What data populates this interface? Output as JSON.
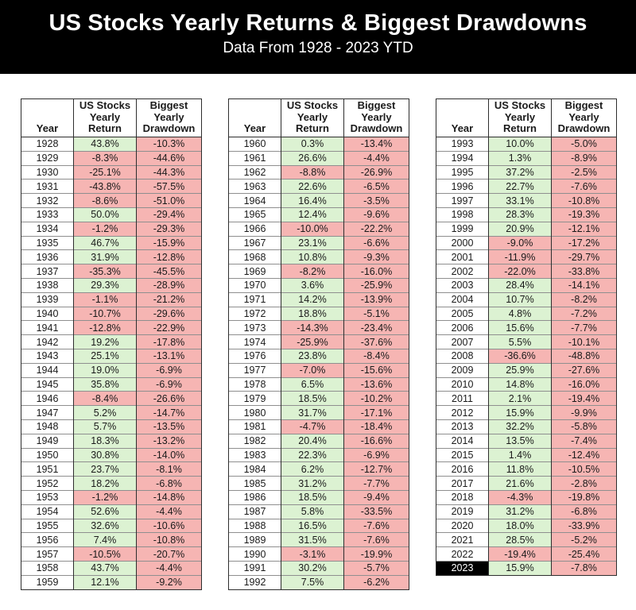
{
  "banner": {
    "title": "US Stocks Yearly Returns & Biggest Drawdowns",
    "subtitle": "Data From 1928 - 2023 YTD"
  },
  "columns_display": [
    "Year",
    "US Stocks\nYearly\nReturn",
    "Biggest\nYearly\nDrawdown"
  ],
  "highlight_year": "2023",
  "colors": {
    "positive_fill": "#dcf2d2",
    "negative_fill": "#f6b5b3",
    "highlight_bg": "#000000",
    "highlight_text": "#ffffff",
    "banner_bg": "#000000",
    "banner_text": "#ffffff"
  },
  "chart_data": {
    "type": "table",
    "title": "US Stocks Yearly Returns & Biggest Drawdowns",
    "subtitle": "Data From 1928 - 2023 YTD",
    "columns": [
      "Year",
      "US Stocks Yearly Return",
      "Biggest Yearly Drawdown"
    ],
    "tables": [
      {
        "rows": [
          [
            "1928",
            "43.8%",
            "-10.3%"
          ],
          [
            "1929",
            "-8.3%",
            "-44.6%"
          ],
          [
            "1930",
            "-25.1%",
            "-44.3%"
          ],
          [
            "1931",
            "-43.8%",
            "-57.5%"
          ],
          [
            "1932",
            "-8.6%",
            "-51.0%"
          ],
          [
            "1933",
            "50.0%",
            "-29.4%"
          ],
          [
            "1934",
            "-1.2%",
            "-29.3%"
          ],
          [
            "1935",
            "46.7%",
            "-15.9%"
          ],
          [
            "1936",
            "31.9%",
            "-12.8%"
          ],
          [
            "1937",
            "-35.3%",
            "-45.5%"
          ],
          [
            "1938",
            "29.3%",
            "-28.9%"
          ],
          [
            "1939",
            "-1.1%",
            "-21.2%"
          ],
          [
            "1940",
            "-10.7%",
            "-29.6%"
          ],
          [
            "1941",
            "-12.8%",
            "-22.9%"
          ],
          [
            "1942",
            "19.2%",
            "-17.8%"
          ],
          [
            "1943",
            "25.1%",
            "-13.1%"
          ],
          [
            "1944",
            "19.0%",
            "-6.9%"
          ],
          [
            "1945",
            "35.8%",
            "-6.9%"
          ],
          [
            "1946",
            "-8.4%",
            "-26.6%"
          ],
          [
            "1947",
            "5.2%",
            "-14.7%"
          ],
          [
            "1948",
            "5.7%",
            "-13.5%"
          ],
          [
            "1949",
            "18.3%",
            "-13.2%"
          ],
          [
            "1950",
            "30.8%",
            "-14.0%"
          ],
          [
            "1951",
            "23.7%",
            "-8.1%"
          ],
          [
            "1952",
            "18.2%",
            "-6.8%"
          ],
          [
            "1953",
            "-1.2%",
            "-14.8%"
          ],
          [
            "1954",
            "52.6%",
            "-4.4%"
          ],
          [
            "1955",
            "32.6%",
            "-10.6%"
          ],
          [
            "1956",
            "7.4%",
            "-10.8%"
          ],
          [
            "1957",
            "-10.5%",
            "-20.7%"
          ],
          [
            "1958",
            "43.7%",
            "-4.4%"
          ],
          [
            "1959",
            "12.1%",
            "-9.2%"
          ]
        ]
      },
      {
        "rows": [
          [
            "1960",
            "0.3%",
            "-13.4%"
          ],
          [
            "1961",
            "26.6%",
            "-4.4%"
          ],
          [
            "1962",
            "-8.8%",
            "-26.9%"
          ],
          [
            "1963",
            "22.6%",
            "-6.5%"
          ],
          [
            "1964",
            "16.4%",
            "-3.5%"
          ],
          [
            "1965",
            "12.4%",
            "-9.6%"
          ],
          [
            "1966",
            "-10.0%",
            "-22.2%"
          ],
          [
            "1967",
            "23.1%",
            "-6.6%"
          ],
          [
            "1968",
            "10.8%",
            "-9.3%"
          ],
          [
            "1969",
            "-8.2%",
            "-16.0%"
          ],
          [
            "1970",
            "3.6%",
            "-25.9%"
          ],
          [
            "1971",
            "14.2%",
            "-13.9%"
          ],
          [
            "1972",
            "18.8%",
            "-5.1%"
          ],
          [
            "1973",
            "-14.3%",
            "-23.4%"
          ],
          [
            "1974",
            "-25.9%",
            "-37.6%"
          ],
          [
            "1976",
            "23.8%",
            "-8.4%"
          ],
          [
            "1977",
            "-7.0%",
            "-15.6%"
          ],
          [
            "1978",
            "6.5%",
            "-13.6%"
          ],
          [
            "1979",
            "18.5%",
            "-10.2%"
          ],
          [
            "1980",
            "31.7%",
            "-17.1%"
          ],
          [
            "1981",
            "-4.7%",
            "-18.4%"
          ],
          [
            "1982",
            "20.4%",
            "-16.6%"
          ],
          [
            "1983",
            "22.3%",
            "-6.9%"
          ],
          [
            "1984",
            "6.2%",
            "-12.7%"
          ],
          [
            "1985",
            "31.2%",
            "-7.7%"
          ],
          [
            "1986",
            "18.5%",
            "-9.4%"
          ],
          [
            "1987",
            "5.8%",
            "-33.5%"
          ],
          [
            "1988",
            "16.5%",
            "-7.6%"
          ],
          [
            "1989",
            "31.5%",
            "-7.6%"
          ],
          [
            "1990",
            "-3.1%",
            "-19.9%"
          ],
          [
            "1991",
            "30.2%",
            "-5.7%"
          ],
          [
            "1992",
            "7.5%",
            "-6.2%"
          ]
        ]
      },
      {
        "rows": [
          [
            "1993",
            "10.0%",
            "-5.0%"
          ],
          [
            "1994",
            "1.3%",
            "-8.9%"
          ],
          [
            "1995",
            "37.2%",
            "-2.5%"
          ],
          [
            "1996",
            "22.7%",
            "-7.6%"
          ],
          [
            "1997",
            "33.1%",
            "-10.8%"
          ],
          [
            "1998",
            "28.3%",
            "-19.3%"
          ],
          [
            "1999",
            "20.9%",
            "-12.1%"
          ],
          [
            "2000",
            "-9.0%",
            "-17.2%"
          ],
          [
            "2001",
            "-11.9%",
            "-29.7%"
          ],
          [
            "2002",
            "-22.0%",
            "-33.8%"
          ],
          [
            "2003",
            "28.4%",
            "-14.1%"
          ],
          [
            "2004",
            "10.7%",
            "-8.2%"
          ],
          [
            "2005",
            "4.8%",
            "-7.2%"
          ],
          [
            "2006",
            "15.6%",
            "-7.7%"
          ],
          [
            "2007",
            "5.5%",
            "-10.1%"
          ],
          [
            "2008",
            "-36.6%",
            "-48.8%"
          ],
          [
            "2009",
            "25.9%",
            "-27.6%"
          ],
          [
            "2010",
            "14.8%",
            "-16.0%"
          ],
          [
            "2011",
            "2.1%",
            "-19.4%"
          ],
          [
            "2012",
            "15.9%",
            "-9.9%"
          ],
          [
            "2013",
            "32.2%",
            "-5.8%"
          ],
          [
            "2014",
            "13.5%",
            "-7.4%"
          ],
          [
            "2015",
            "1.4%",
            "-12.4%"
          ],
          [
            "2016",
            "11.8%",
            "-10.5%"
          ],
          [
            "2017",
            "21.6%",
            "-2.8%"
          ],
          [
            "2018",
            "-4.3%",
            "-19.8%"
          ],
          [
            "2019",
            "31.2%",
            "-6.8%"
          ],
          [
            "2020",
            "18.0%",
            "-33.9%"
          ],
          [
            "2021",
            "28.5%",
            "-5.2%"
          ],
          [
            "2022",
            "-19.4%",
            "-25.4%"
          ],
          [
            "2023",
            "15.9%",
            "-7.8%"
          ]
        ]
      }
    ]
  }
}
